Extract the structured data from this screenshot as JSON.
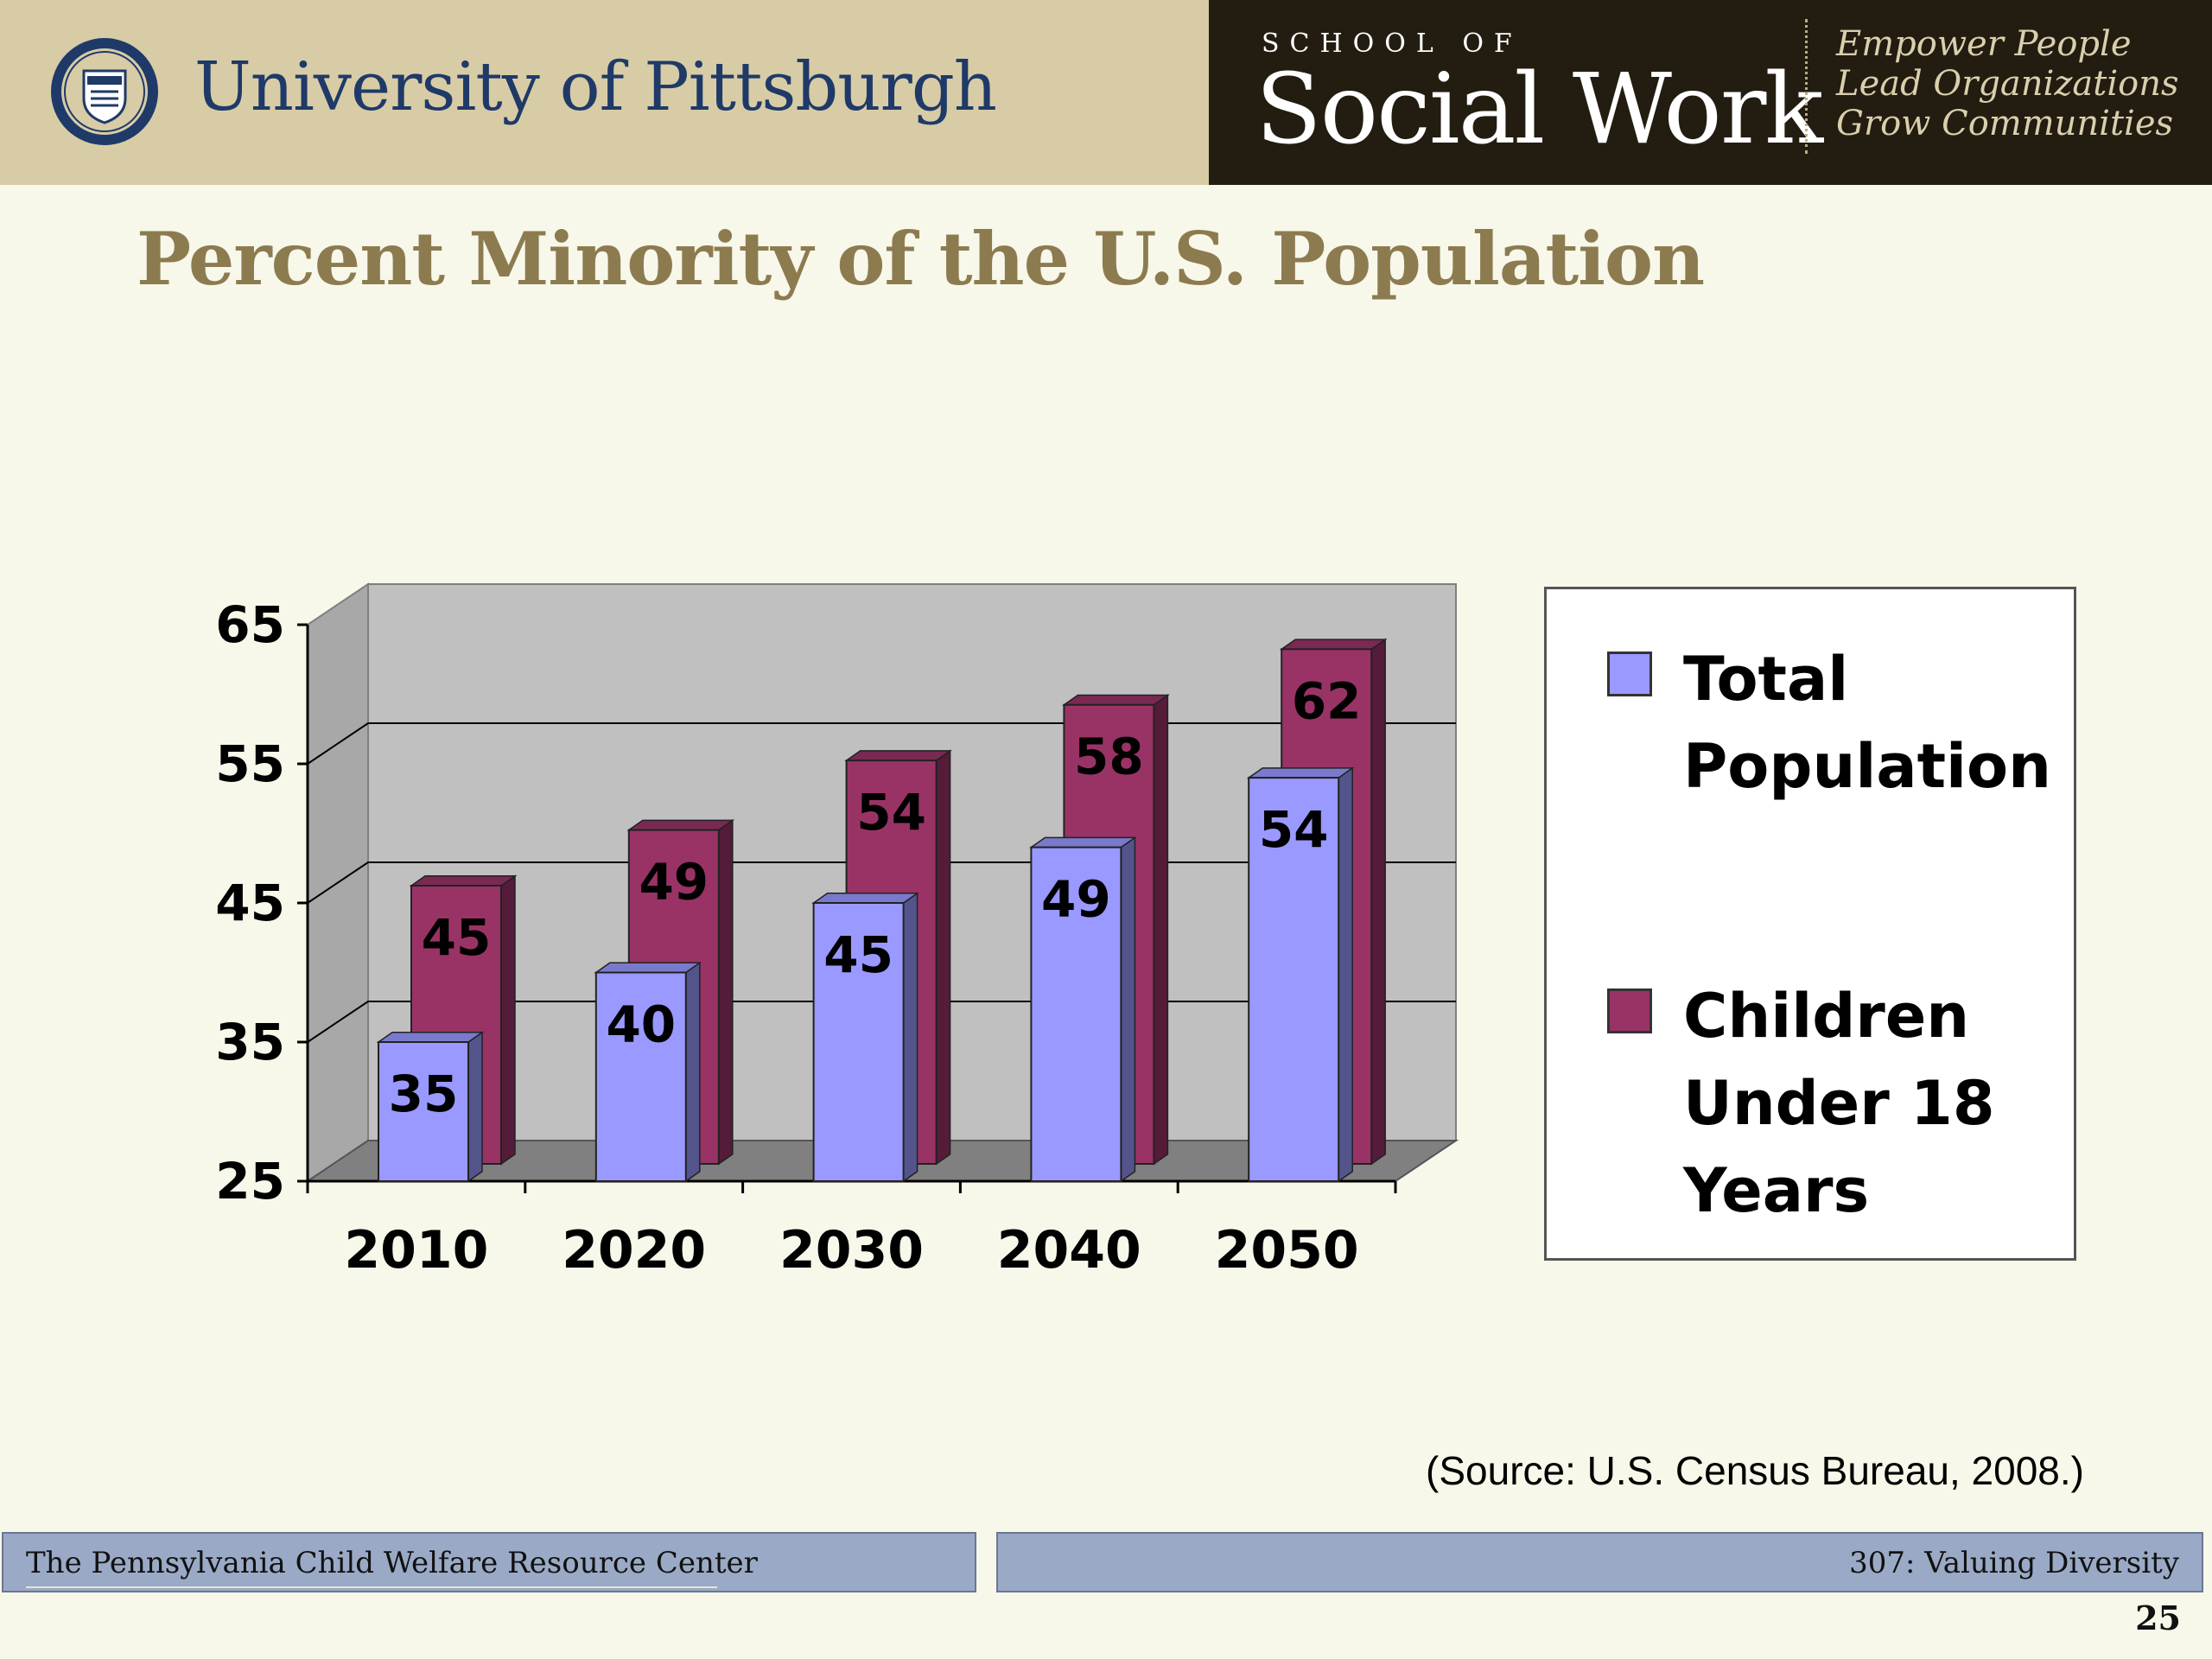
{
  "header": {
    "university": "University of Pittsburgh",
    "school_of": "SCHOOL OF",
    "school_name": "Social Work",
    "motto": [
      "Empower People",
      "Lead Organizations",
      "Grow Communities"
    ],
    "seal_icon": "university-seal-icon",
    "left_color": "#d8cca6",
    "right_color": "#231c10"
  },
  "title": "Percent Minority of the U.S. Population",
  "chart_data": {
    "type": "bar",
    "categories": [
      "2010",
      "2020",
      "2030",
      "2040",
      "2050"
    ],
    "series": [
      {
        "name": "Total Population",
        "values": [
          35,
          40,
          45,
          49,
          54
        ],
        "color": "#9999ff"
      },
      {
        "name": "Children Under 18 Years",
        "values": [
          45,
          49,
          54,
          58,
          62
        ],
        "color": "#993366"
      }
    ],
    "y_ticks": [
      "25",
      "35",
      "45",
      "55",
      "65"
    ],
    "ylim": [
      25,
      65
    ],
    "grid": true,
    "legend_position": "right",
    "three_d": true
  },
  "source": "(Source: U.S. Census Bureau, 2008.)",
  "footer": {
    "left": "The Pennsylvania Child Welfare Resource Center",
    "right": "307: Valuing Diversity",
    "page": "25"
  }
}
